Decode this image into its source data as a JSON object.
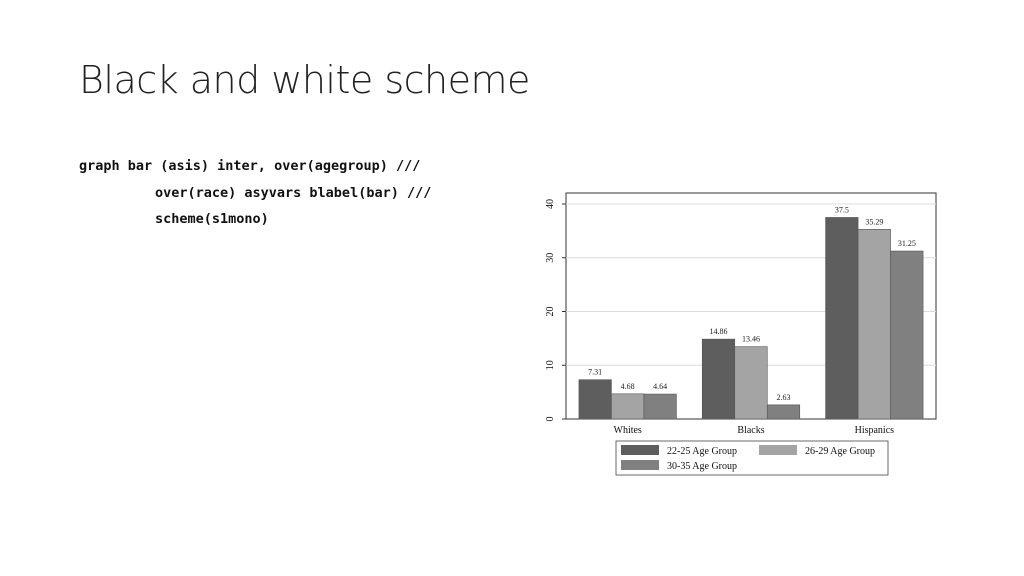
{
  "slide": {
    "title": "Black and white scheme",
    "code_lines": [
      "graph bar (asis) inter, over(agegroup) ///",
      "over(race) asyvars blabel(bar) ///",
      "scheme(s1mono)"
    ]
  },
  "chart_data": {
    "type": "bar",
    "categories": [
      "Whites",
      "Blacks",
      "Hispanics"
    ],
    "series": [
      {
        "name": "22-25 Age Group",
        "values": [
          7.31,
          14.86,
          37.5
        ],
        "color": "#5e5e5e"
      },
      {
        "name": "26-29 Age Group",
        "values": [
          4.68,
          13.46,
          35.29
        ],
        "color": "#a4a4a4"
      },
      {
        "name": "30-35 Age Group",
        "values": [
          4.64,
          2.63,
          31.25
        ],
        "color": "#808080"
      }
    ],
    "value_labels": [
      [
        "7.31",
        "14.86",
        "37.5"
      ],
      [
        "4.68",
        "13.46",
        "35.29"
      ],
      [
        "4.64",
        "2.63",
        "31.25"
      ]
    ],
    "yticks": [
      0,
      10,
      20,
      30,
      40
    ],
    "ylim": [
      0,
      40
    ],
    "grid": true,
    "legend_position": "bottom",
    "title": "",
    "xlabel": "",
    "ylabel": ""
  }
}
